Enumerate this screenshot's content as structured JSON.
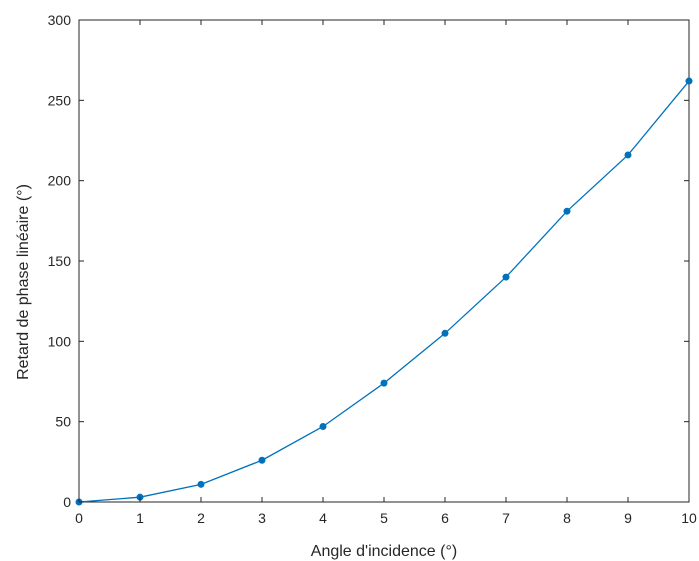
{
  "chart_data": {
    "type": "line",
    "xlabel": "Angle d'incidence (°)",
    "ylabel": "Retard de phase linéaire (°)",
    "xlim": [
      0,
      10
    ],
    "ylim": [
      0,
      300
    ],
    "xticks": [
      "0",
      "1",
      "2",
      "3",
      "4",
      "5",
      "6",
      "7",
      "8",
      "9",
      "10"
    ],
    "yticks": [
      "0",
      "50",
      "100",
      "150",
      "200",
      "250",
      "300"
    ],
    "grid": false,
    "series": [
      {
        "x": [
          0,
          1,
          2,
          3,
          4,
          5,
          6,
          7,
          8,
          9,
          10
        ],
        "values": [
          0,
          3,
          11,
          26,
          47,
          74,
          105,
          140,
          181,
          216,
          262
        ],
        "color": "#0072BD",
        "marker": "dot"
      }
    ]
  }
}
